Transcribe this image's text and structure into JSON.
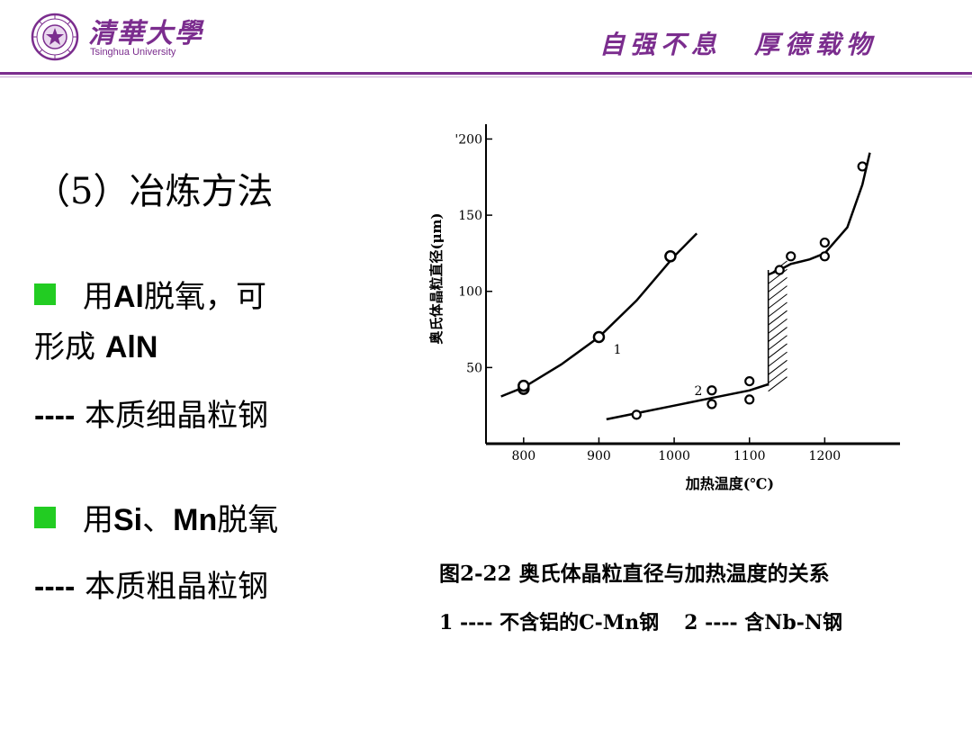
{
  "header": {
    "university_cn": "清華大學",
    "university_en": "Tsinghua University",
    "motto": [
      "自强不息",
      "厚德载物"
    ],
    "accent_color": "#7b2d8e"
  },
  "content": {
    "section_title": "（5）冶炼方法",
    "bullet1_line1_prefix": "用",
    "bullet1_line1_bold": "Al",
    "bullet1_line1_suffix": "脱氧，可",
    "bullet1_line2_prefix": "形成 ",
    "bullet1_line2_bold": "AlN",
    "result1_dash": "----",
    "result1_text": " 本质细晶粒钢",
    "bullet2_prefix": "用",
    "bullet2_bold": "Si",
    "bullet2_mid": "、",
    "bullet2_bold2": "Mn",
    "bullet2_suffix": "脱氧",
    "result2_dash": "----",
    "result2_text": " 本质粗晶粒钢",
    "bullet_color": "#22cc22"
  },
  "figure": {
    "caption": "图2-22  奥氏体晶粒直径与加热温度的关系",
    "legend_1": "1 ---- 不含铝的C-Mn钢",
    "legend_2": "2 ---- 含Nb-N钢"
  },
  "chart_data": {
    "type": "scatter",
    "xlabel": "加热温度(℃)",
    "ylabel": "奥氏体晶粒直径(μm)",
    "xlim": [
      750,
      1300
    ],
    "ylim": [
      0,
      205
    ],
    "xticks": [
      800,
      900,
      1000,
      1100,
      1200
    ],
    "yticks": [
      50,
      100,
      150,
      200
    ],
    "ytick_labels": [
      "50",
      "100",
      "150",
      "'200"
    ],
    "grid": false,
    "series": [
      {
        "name": "1",
        "points": [
          [
            800,
            36
          ],
          [
            800,
            38
          ],
          [
            900,
            70
          ],
          [
            995,
            123
          ]
        ],
        "curve": [
          [
            770,
            31
          ],
          [
            800,
            37
          ],
          [
            850,
            52
          ],
          [
            900,
            70
          ],
          [
            950,
            94
          ],
          [
            1000,
            123
          ],
          [
            1030,
            138
          ]
        ]
      },
      {
        "name": "2",
        "points": [
          [
            950,
            19
          ],
          [
            1050,
            35
          ],
          [
            1050,
            26
          ],
          [
            1100,
            41
          ],
          [
            1100,
            29
          ],
          [
            1140,
            114
          ],
          [
            1155,
            123
          ],
          [
            1200,
            132
          ],
          [
            1200,
            123
          ],
          [
            1250,
            182
          ]
        ],
        "curve_low": [
          [
            910,
            16
          ],
          [
            950,
            20
          ],
          [
            1000,
            25
          ],
          [
            1050,
            30
          ],
          [
            1100,
            35
          ],
          [
            1125,
            39
          ]
        ],
        "curve_high": [
          [
            1125,
            111
          ],
          [
            1140,
            114
          ],
          [
            1155,
            118
          ],
          [
            1180,
            121
          ],
          [
            1200,
            125
          ],
          [
            1230,
            142
          ],
          [
            1250,
            170
          ],
          [
            1260,
            191
          ]
        ]
      }
    ],
    "transition_band": {
      "x": [
        1125,
        1150
      ],
      "y": [
        38,
        114
      ]
    }
  }
}
